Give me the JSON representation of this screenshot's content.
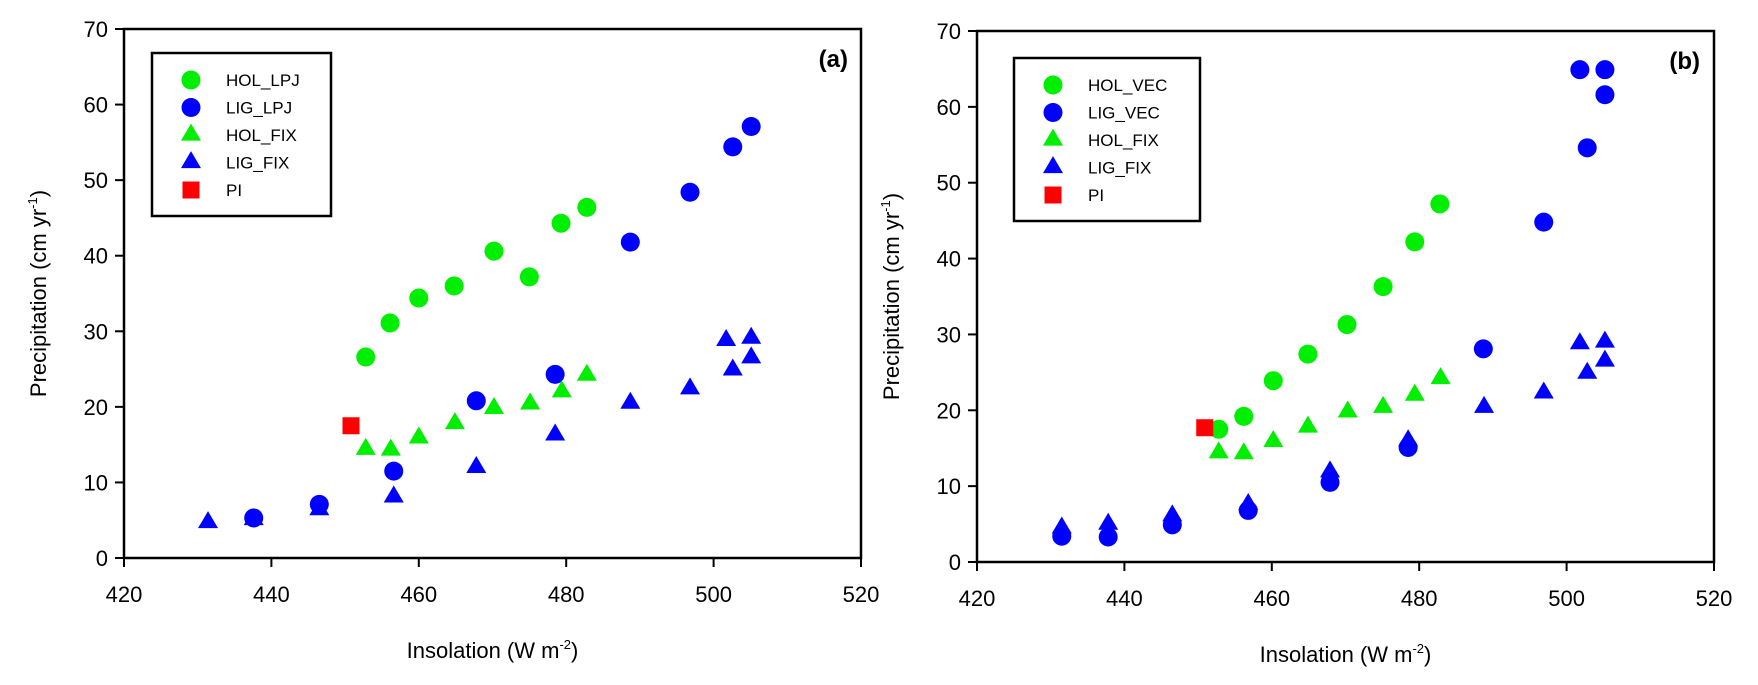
{
  "colors": {
    "green": "#00ee00",
    "blue": "#0000ff",
    "red": "#ff0000",
    "axis": "#000000"
  },
  "chart_data": [
    {
      "type": "scatter",
      "panel_label": "(a)",
      "xlabel": "Insolation (W m-2)",
      "xlabel_main": "Insolation (W m",
      "xlabel_sup": "-2",
      "xlabel_tail": ")",
      "ylabel": "Precipitation (cm yr-1)",
      "ylabel_main": "Precipitation (cm yr",
      "ylabel_sup": "-1",
      "ylabel_tail": ")",
      "xlim": [
        420,
        520
      ],
      "ylim": [
        0,
        70
      ],
      "xticks": [
        420,
        440,
        460,
        480,
        500,
        520
      ],
      "yticks": [
        0,
        10,
        20,
        30,
        40,
        50,
        60,
        70
      ],
      "grid": false,
      "legend_position": "top-left",
      "series": [
        {
          "name": "HOL_LPJ",
          "marker": "circle",
          "color": "green",
          "x": [
            452.8,
            456.1,
            460.0,
            464.8,
            470.2,
            475.0,
            479.3,
            482.8
          ],
          "y": [
            26.6,
            31.1,
            34.4,
            36.0,
            40.6,
            37.2,
            44.3,
            46.4
          ]
        },
        {
          "name": "LIG_LPJ",
          "marker": "circle",
          "color": "blue",
          "x": [
            437.6,
            446.5,
            456.6,
            467.8,
            478.5,
            488.7,
            496.8,
            502.6,
            505.1
          ],
          "y": [
            5.3,
            7.1,
            11.5,
            20.8,
            24.3,
            41.8,
            48.4,
            54.4,
            57.1
          ]
        },
        {
          "name": "HOL_FIX",
          "marker": "triangle",
          "color": "green",
          "x": [
            452.8,
            456.2,
            460.0,
            464.9,
            470.2,
            475.1,
            479.4,
            482.8
          ],
          "y": [
            14.4,
            14.3,
            15.9,
            17.8,
            19.8,
            20.4,
            22.0,
            24.2
          ]
        },
        {
          "name": "LIG_FIX",
          "marker": "triangle",
          "color": "blue",
          "x": [
            431.4,
            437.6,
            446.5,
            456.6,
            467.8,
            478.5,
            488.7,
            496.8,
            501.7,
            502.6,
            505.1,
            505.1
          ],
          "y": [
            4.7,
            5.1,
            6.4,
            8.1,
            12.0,
            16.3,
            20.5,
            22.4,
            28.8,
            24.9,
            29.1,
            26.5
          ]
        },
        {
          "name": "PI",
          "marker": "square",
          "color": "red",
          "x": [
            450.8
          ],
          "y": [
            17.5
          ]
        }
      ]
    },
    {
      "type": "scatter",
      "panel_label": "(b)",
      "xlabel": "Insolation (W m-2)",
      "xlabel_main": "Insolation (W m",
      "xlabel_sup": "-2",
      "xlabel_tail": ")",
      "ylabel": "Precipitation (cm yr-1)",
      "ylabel_main": "Precipitation (cm yr",
      "ylabel_sup": "-1",
      "ylabel_tail": ")",
      "xlim": [
        420,
        520
      ],
      "ylim": [
        0,
        70
      ],
      "xticks": [
        420,
        440,
        460,
        480,
        500,
        520
      ],
      "yticks": [
        0,
        10,
        20,
        30,
        40,
        50,
        60,
        70
      ],
      "grid": false,
      "legend_position": "top-left",
      "series": [
        {
          "name": "HOL_VEC",
          "marker": "circle",
          "color": "green",
          "x": [
            452.8,
            456.2,
            460.2,
            464.9,
            470.2,
            475.1,
            479.4,
            482.8
          ],
          "y": [
            17.5,
            19.2,
            23.9,
            27.4,
            31.3,
            36.3,
            42.2,
            47.2
          ]
        },
        {
          "name": "LIG_VEC",
          "marker": "circle",
          "color": "blue",
          "x": [
            431.5,
            437.8,
            446.5,
            456.8,
            467.9,
            478.5,
            488.7,
            496.9,
            501.8,
            502.8,
            505.2,
            505.2
          ],
          "y": [
            3.4,
            3.3,
            4.9,
            6.8,
            10.5,
            15.1,
            28.1,
            44.8,
            64.9,
            54.6,
            64.9,
            61.6
          ]
        },
        {
          "name": "HOL_FIX",
          "marker": "triangle",
          "color": "green",
          "x": [
            452.8,
            456.2,
            460.2,
            464.9,
            470.3,
            475.1,
            479.4,
            482.9
          ],
          "y": [
            14.4,
            14.3,
            15.9,
            17.8,
            19.8,
            20.4,
            22.0,
            24.2
          ]
        },
        {
          "name": "LIG_FIX",
          "marker": "triangle",
          "color": "blue",
          "x": [
            431.5,
            437.8,
            446.5,
            456.8,
            467.9,
            478.5,
            488.8,
            496.9,
            501.8,
            502.8,
            505.2,
            505.2
          ],
          "y": [
            4.5,
            5.0,
            6.1,
            7.6,
            11.9,
            16.0,
            20.4,
            22.3,
            28.8,
            24.9,
            29.0,
            26.5
          ]
        },
        {
          "name": "PI",
          "marker": "square",
          "color": "red",
          "x": [
            450.9
          ],
          "y": [
            17.7
          ]
        }
      ]
    }
  ]
}
